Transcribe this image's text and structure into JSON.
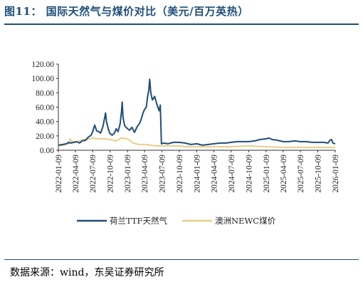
{
  "title": "图11：  国际天然气与煤价对比（美元/百万英热）",
  "source": "数据来源：wind，东吴证券研究所",
  "chart_data": {
    "type": "line",
    "title": "",
    "xlabel": "",
    "ylabel": "",
    "ylim": [
      0,
      120
    ],
    "yticks": [
      "0.00",
      "20.00",
      "40.00",
      "60.00",
      "80.00",
      "100.00",
      "120.00"
    ],
    "xticks": [
      "2022-01-09",
      "2022-04-09",
      "2022-07-09",
      "2022-10-09",
      "2023-01-09",
      "2023-04-09",
      "2023-07-09",
      "2023-10-09",
      "2024-01-09",
      "2024-04-09",
      "2024-07-09",
      "2024-10-09",
      "2025-01-09",
      "2025-04-09",
      "2025-07-09",
      "2025-10-09",
      "2026-01-09"
    ],
    "grid": false,
    "legend_position": "bottom",
    "series": [
      {
        "name": "荷兰TTF天然气",
        "color": "#1f4e79",
        "points": [
          [
            "2022-01-09",
            7
          ],
          [
            "2022-02-01",
            8
          ],
          [
            "2022-02-20",
            9
          ],
          [
            "2022-03-05",
            11
          ],
          [
            "2022-03-15",
            10
          ],
          [
            "2022-04-01",
            11
          ],
          [
            "2022-04-15",
            12
          ],
          [
            "2022-05-01",
            10
          ],
          [
            "2022-05-15",
            13
          ],
          [
            "2022-06-01",
            14
          ],
          [
            "2022-06-15",
            18
          ],
          [
            "2022-07-01",
            21
          ],
          [
            "2022-07-09",
            26
          ],
          [
            "2022-07-20",
            35
          ],
          [
            "2022-07-30",
            27
          ],
          [
            "2022-08-10",
            26
          ],
          [
            "2022-08-20",
            24
          ],
          [
            "2022-09-01",
            33
          ],
          [
            "2022-09-10",
            45
          ],
          [
            "2022-09-15",
            52
          ],
          [
            "2022-09-20",
            40
          ],
          [
            "2022-10-01",
            28
          ],
          [
            "2022-10-09",
            23
          ],
          [
            "2022-10-20",
            21
          ],
          [
            "2022-11-01",
            24
          ],
          [
            "2022-11-10",
            30
          ],
          [
            "2022-11-20",
            26
          ],
          [
            "2022-12-01",
            37
          ],
          [
            "2022-12-08",
            54
          ],
          [
            "2022-12-12",
            67
          ],
          [
            "2022-12-16",
            46
          ],
          [
            "2022-12-25",
            34
          ],
          [
            "2023-01-09",
            30
          ],
          [
            "2023-01-20",
            28
          ],
          [
            "2023-02-01",
            32
          ],
          [
            "2023-02-15",
            25
          ],
          [
            "2023-03-01",
            33
          ],
          [
            "2023-03-15",
            38
          ],
          [
            "2023-03-25",
            46
          ],
          [
            "2023-04-01",
            52
          ],
          [
            "2023-04-09",
            57
          ],
          [
            "2023-04-18",
            60
          ],
          [
            "2023-04-25",
            75
          ],
          [
            "2023-05-01",
            83
          ],
          [
            "2023-05-06",
            99
          ],
          [
            "2023-05-12",
            80
          ],
          [
            "2023-05-20",
            70
          ],
          [
            "2023-06-01",
            75
          ],
          [
            "2023-06-15",
            62
          ],
          [
            "2023-06-25",
            55
          ],
          [
            "2023-07-01",
            63
          ],
          [
            "2023-07-07",
            9
          ],
          [
            "2023-07-20",
            10
          ],
          [
            "2023-08-09",
            9
          ],
          [
            "2023-09-09",
            11
          ],
          [
            "2023-10-09",
            11
          ],
          [
            "2023-11-09",
            10
          ],
          [
            "2023-12-09",
            8
          ],
          [
            "2024-01-09",
            9
          ],
          [
            "2024-02-09",
            7
          ],
          [
            "2024-03-09",
            8
          ],
          [
            "2024-04-09",
            9
          ],
          [
            "2024-05-09",
            10
          ],
          [
            "2024-06-09",
            10
          ],
          [
            "2024-07-09",
            11
          ],
          [
            "2024-08-09",
            12
          ],
          [
            "2024-09-09",
            12
          ],
          [
            "2024-10-09",
            12
          ],
          [
            "2024-11-09",
            13
          ],
          [
            "2024-12-09",
            15
          ],
          [
            "2025-01-09",
            16
          ],
          [
            "2025-01-25",
            17
          ],
          [
            "2025-02-09",
            15
          ],
          [
            "2025-03-09",
            14
          ],
          [
            "2025-04-09",
            12
          ],
          [
            "2025-05-09",
            12
          ],
          [
            "2025-06-09",
            13
          ],
          [
            "2025-07-09",
            12
          ],
          [
            "2025-08-09",
            12
          ],
          [
            "2025-09-09",
            11
          ],
          [
            "2025-10-09",
            11
          ],
          [
            "2025-11-09",
            11
          ],
          [
            "2025-12-01",
            10
          ],
          [
            "2025-12-12",
            14
          ],
          [
            "2025-12-20",
            15
          ],
          [
            "2025-12-28",
            10
          ],
          [
            "2026-01-09",
            9
          ]
        ]
      },
      {
        "name": "澳洲NEWC煤价",
        "color": "#e8cf87",
        "points": [
          [
            "2022-01-09",
            6
          ],
          [
            "2022-02-09",
            7
          ],
          [
            "2022-03-05",
            10
          ],
          [
            "2022-03-12",
            16
          ],
          [
            "2022-03-20",
            12
          ],
          [
            "2022-04-09",
            11
          ],
          [
            "2022-05-09",
            14
          ],
          [
            "2022-06-09",
            15
          ],
          [
            "2022-07-09",
            17
          ],
          [
            "2022-08-09",
            16
          ],
          [
            "2022-09-09",
            16
          ],
          [
            "2022-10-09",
            15
          ],
          [
            "2022-11-09",
            13
          ],
          [
            "2022-12-09",
            17
          ],
          [
            "2023-01-09",
            16
          ],
          [
            "2023-02-09",
            10
          ],
          [
            "2023-03-09",
            8
          ],
          [
            "2023-04-09",
            8
          ],
          [
            "2023-05-09",
            7
          ],
          [
            "2023-06-09",
            6
          ],
          [
            "2023-07-09",
            6
          ],
          [
            "2023-08-09",
            6
          ],
          [
            "2023-09-09",
            6
          ],
          [
            "2023-10-09",
            6
          ],
          [
            "2023-11-09",
            5
          ],
          [
            "2024-01-09",
            5
          ],
          [
            "2024-04-09",
            5
          ],
          [
            "2024-07-09",
            5
          ],
          [
            "2024-10-09",
            6
          ],
          [
            "2025-01-09",
            5
          ],
          [
            "2025-04-09",
            4
          ],
          [
            "2025-07-09",
            4
          ],
          [
            "2025-10-09",
            4
          ],
          [
            "2026-01-09",
            4
          ]
        ]
      }
    ]
  }
}
